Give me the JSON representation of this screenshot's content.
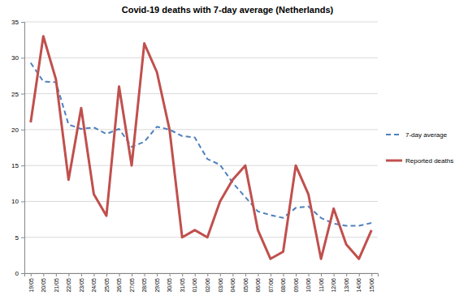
{
  "chart_data": {
    "type": "line",
    "title": "Covid-19 deaths with 7-day average (Netherlands)",
    "categories": [
      "19/05",
      "20/05",
      "21/05",
      "22/05",
      "23/05",
      "24/05",
      "25/05",
      "26/05",
      "27/05",
      "28/05",
      "29/05",
      "30/05",
      "31/05",
      "01/06",
      "02/06",
      "03/06",
      "04/06",
      "05/06",
      "06/06",
      "07/06",
      "08/06",
      "09/06",
      "10/06",
      "11/06",
      "12/06",
      "13/06",
      "14/06",
      "15/06"
    ],
    "series": [
      {
        "name": "7-day average",
        "color": "#4f81bd",
        "line_style": "dashed",
        "values": [
          29.3,
          26.7,
          26.6,
          20.7,
          20.1,
          20.3,
          19.4,
          20.1,
          17.6,
          18.3,
          20.4,
          20.0,
          19.1,
          18.9,
          15.9,
          15.1,
          12.6,
          10.6,
          8.6,
          8.1,
          7.7,
          9.1,
          9.3,
          7.7,
          6.9,
          6.6,
          6.6,
          7.0
        ]
      },
      {
        "name": "Reported deaths",
        "color": "#c0504d",
        "line_style": "solid",
        "values": [
          21,
          33,
          27,
          13,
          23,
          11,
          8,
          26,
          15,
          32,
          28,
          20,
          5,
          6,
          5,
          10,
          13,
          15,
          6,
          2,
          3,
          15,
          11,
          2,
          9,
          4,
          2,
          6
        ]
      }
    ],
    "ylim": [
      0,
      35
    ],
    "yticks": [
      0,
      5,
      10,
      15,
      20,
      25,
      30,
      35
    ],
    "grid": true,
    "legend": "right"
  }
}
